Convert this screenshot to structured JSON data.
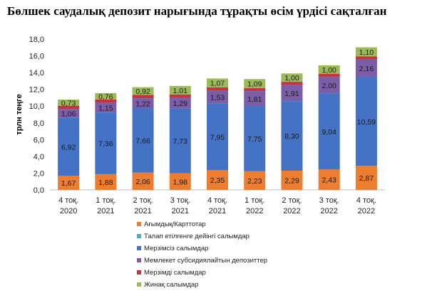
{
  "chart_data": {
    "type": "bar",
    "stacked": true,
    "title": "Бөлшек саудалық депозит нарығында тұрақты өсім үрдісі сақталған",
    "xlabel": "",
    "ylabel": "трлн теңге",
    "ylim": [
      0,
      18
    ],
    "yticks": [
      "0,0",
      "2,0",
      "4,0",
      "6,0",
      "8,0",
      "10,0",
      "12,0",
      "14,0",
      "16,0",
      "18,0"
    ],
    "grid": false,
    "legend_position": "bottom",
    "categories": [
      [
        "4 тоқ.",
        "2020"
      ],
      [
        "1 тоқ.",
        "2021"
      ],
      [
        "2 тоқ.",
        "2021"
      ],
      [
        "3 тоқ.",
        "2021"
      ],
      [
        "4 тоқ.",
        "2021"
      ],
      [
        "1 тоқ.",
        "2022"
      ],
      [
        "2 тоқ.",
        "2022"
      ],
      [
        "3 тоқ.",
        "2022"
      ],
      [
        "4 тоқ.",
        "2022"
      ]
    ],
    "series": [
      {
        "name": "Ағымдық/Карттотар",
        "color": "#ed7d31",
        "values": [
          1.67,
          1.88,
          2.06,
          1.98,
          2.35,
          2.23,
          2.29,
          2.43,
          2.87
        ],
        "labels": [
          "1,67",
          "1,88",
          "2,06",
          "1,98",
          "2,35",
          "2,23",
          "2,29",
          "2,43",
          "2,87"
        ]
      },
      {
        "name": "Талап етілгенге дейінгі салымдар",
        "color": "#4bacc6",
        "values": [
          0,
          0,
          0,
          0,
          0,
          0,
          0,
          0,
          0
        ],
        "labels": null
      },
      {
        "name": "Мерзімсіз салымдар",
        "color": "#4472c4",
        "values": [
          6.92,
          7.36,
          7.66,
          7.73,
          7.95,
          7.75,
          8.3,
          9.04,
          10.59
        ],
        "labels": [
          "6,92",
          "7,36",
          "7,66",
          "7,73",
          "7,95",
          "7,75",
          "8,30",
          "9,04",
          "10,59"
        ]
      },
      {
        "name": "Мемлекет субсидиялайтын депозиттер",
        "color": "#7b5ea7",
        "values": [
          1.06,
          1.15,
          1.22,
          1.29,
          1.53,
          1.81,
          1.91,
          2.0,
          2.16
        ],
        "labels": [
          "1,06",
          "1,15",
          "1,22",
          "1,29",
          "1,53",
          "1,81",
          "1,91",
          "2,00",
          "2,16"
        ]
      },
      {
        "name": "Мерзімді салымдар",
        "color": "#c0373e",
        "values": [
          0.4,
          0.4,
          0.4,
          0.4,
          0.4,
          0.35,
          0.4,
          0.4,
          0.3
        ],
        "labels": null
      },
      {
        "name": "Жинақ салымдар",
        "color": "#9bbb59",
        "values": [
          0.73,
          0.76,
          0.92,
          1.01,
          1.07,
          1.09,
          1.0,
          1.0,
          1.1
        ],
        "labels": [
          "0,73",
          "0,76",
          "0,92",
          "1,01",
          "1,07",
          "1,09",
          "1,00",
          "1,00",
          "1,10"
        ]
      }
    ]
  },
  "legend_entries": [
    "Ағымдық/Карттотар",
    "Талап етілгенге дейінгі салымдар",
    "Мерзімсіз салымдар",
    "Мемлекет субсидиялайтын депозиттер",
    "Мерзімді салымдар",
    "Жинақ салымдар"
  ]
}
